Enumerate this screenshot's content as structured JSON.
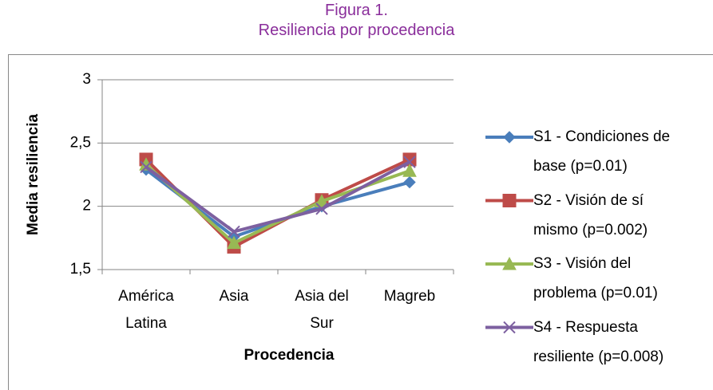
{
  "chart_data": {
    "type": "line",
    "title": "Figura 1.",
    "subtitle": "Resiliencia por procedencia",
    "xlabel": "Procedencia",
    "ylabel": "Media resiliencia",
    "categories": [
      "América Latina",
      "Asia",
      "Asia del Sur",
      "Magreb"
    ],
    "series": [
      {
        "name": "S1 - Condiciones de base (p=0.01)",
        "color": "#4a7ebb",
        "marker": "diamond",
        "values": [
          2.29,
          1.76,
          2.0,
          2.19
        ]
      },
      {
        "name": "S2 - Visión de sí mismo (p=0.002)",
        "color": "#be4b48",
        "marker": "square",
        "values": [
          2.37,
          1.68,
          2.05,
          2.37
        ]
      },
      {
        "name": "S3 - Visión del problema (p=0.01)",
        "color": "#98b954",
        "marker": "triangle",
        "values": [
          2.33,
          1.71,
          2.04,
          2.28
        ]
      },
      {
        "name": "S4 - Respuesta resiliente (p=0.008)",
        "color": "#7d60a0",
        "marker": "x",
        "values": [
          2.31,
          1.8,
          1.98,
          2.35
        ]
      }
    ],
    "ylim": [
      1.5,
      3
    ],
    "yticks": [
      {
        "value": 1.5,
        "label": "1,5"
      },
      2,
      {
        "value": 2.5,
        "label": "2,5"
      },
      3
    ],
    "grid": true,
    "legend": "right"
  }
}
